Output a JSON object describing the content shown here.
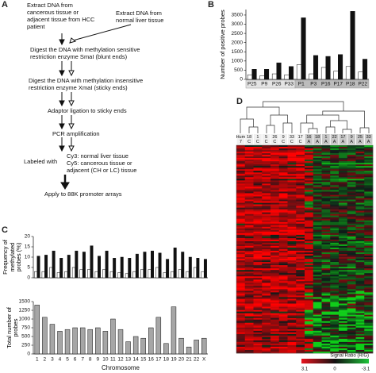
{
  "panels": {
    "a": "A",
    "b": "B",
    "c": "C",
    "d": "D"
  },
  "flowchart": {
    "extract_patient": "Extract DNA from cancerous tissue or adjacent tissue from HCC patient",
    "extract_normal": "Extract DNA from normal liver tissue",
    "digest_smai": "Digest the DNA with methylation sensitive restriction enzyme SmaI (blunt ends)",
    "digest_xmai": "Digest the DNA with methylation insensitive restriction enzyme XmaI (sticky ends)",
    "ligation": "Adaptor ligation to sticky ends",
    "pcr": "PCR amplification",
    "labeled_with": "Labeled with",
    "cy3": "Cy3: normal liver tissue",
    "cy5": "Cy5: cancerous tissue or adjacent (CH or LC) tissue",
    "apply": "Apply to 88K promoter arrays"
  },
  "chart_data": [
    {
      "type": "bar",
      "y_label": "Number of positive probes",
      "categories": [
        "P25",
        "P9",
        "P26",
        "P33",
        "P1",
        "P3",
        "P16",
        "P17",
        "P18",
        "P22"
      ],
      "series": [
        {
          "color": "#ffffff",
          "values": [
            250,
            200,
            300,
            250,
            800,
            300,
            650,
            450,
            700,
            400
          ]
        },
        {
          "color": "#111111",
          "values": [
            550,
            550,
            900,
            700,
            3350,
            1300,
            1250,
            1350,
            3700,
            1100
          ]
        }
      ],
      "ylim": [
        0,
        3800
      ],
      "yticks": [
        0,
        500,
        1000,
        1500,
        2000,
        2500,
        3000,
        3500
      ]
    },
    {
      "type": "bar",
      "y_label": "Frequency of methylated probes (%)",
      "series": [
        {
          "color": "#ffffff",
          "values": [
            3,
            3,
            5,
            2.5,
            3,
            5,
            4,
            4,
            3,
            4,
            3,
            2.5,
            2,
            3,
            4,
            4,
            5,
            2.5,
            3,
            4,
            3,
            5,
            3
          ]
        },
        {
          "color": "#111111",
          "values": [
            10.5,
            11,
            13,
            9.5,
            11,
            13,
            12.5,
            15.5,
            10.5,
            13,
            9.5,
            10,
            9.5,
            11.5,
            12.5,
            13,
            12,
            9,
            14.5,
            12.5,
            10,
            9.5,
            9
          ]
        }
      ],
      "ylim": [
        0,
        20
      ],
      "yticks": [
        0,
        5,
        10,
        15,
        20
      ]
    },
    {
      "type": "bar",
      "y_label": "Total number of probes",
      "x_label": "Chromosome",
      "categories": [
        "1",
        "2",
        "3",
        "4",
        "5",
        "6",
        "7",
        "8",
        "9",
        "10",
        "11",
        "12",
        "13",
        "14",
        "15",
        "16",
        "17",
        "18",
        "19",
        "20",
        "21",
        "22",
        "X"
      ],
      "series": [
        {
          "color": "#a6a6a6",
          "values": [
            1400,
            1050,
            850,
            650,
            700,
            750,
            750,
            700,
            750,
            650,
            1000,
            700,
            350,
            500,
            450,
            750,
            1050,
            300,
            1350,
            450,
            200,
            400,
            450
          ]
        }
      ],
      "ylim": [
        0,
        1500
      ],
      "yticks": [
        0,
        250,
        500,
        750,
        1000,
        1250,
        1500
      ]
    }
  ],
  "heatmap": {
    "columns": [
      {
        "top": "Hum",
        "bottom": "7"
      },
      {
        "top": "18",
        "bottom": "C"
      },
      {
        "top": "1",
        "bottom": "C"
      },
      {
        "top": "5",
        "bottom": "C"
      },
      {
        "top": "26",
        "bottom": "C"
      },
      {
        "top": "9",
        "bottom": "C"
      },
      {
        "top": "33",
        "bottom": "C"
      },
      {
        "top": "17",
        "bottom": "C"
      },
      {
        "top": "16",
        "bottom": "A"
      },
      {
        "top": "18",
        "bottom": "A"
      },
      {
        "top": "1",
        "bottom": "A"
      },
      {
        "top": "22",
        "bottom": "A"
      },
      {
        "top": "17",
        "bottom": "A"
      },
      {
        "top": "9",
        "bottom": "A"
      },
      {
        "top": "25",
        "bottom": "A"
      },
      {
        "top": "33",
        "bottom": "A"
      }
    ],
    "colorbar": {
      "title": "Signal Ratio (R/G)",
      "labels": [
        "3.1",
        "0",
        "-3.1"
      ]
    }
  }
}
